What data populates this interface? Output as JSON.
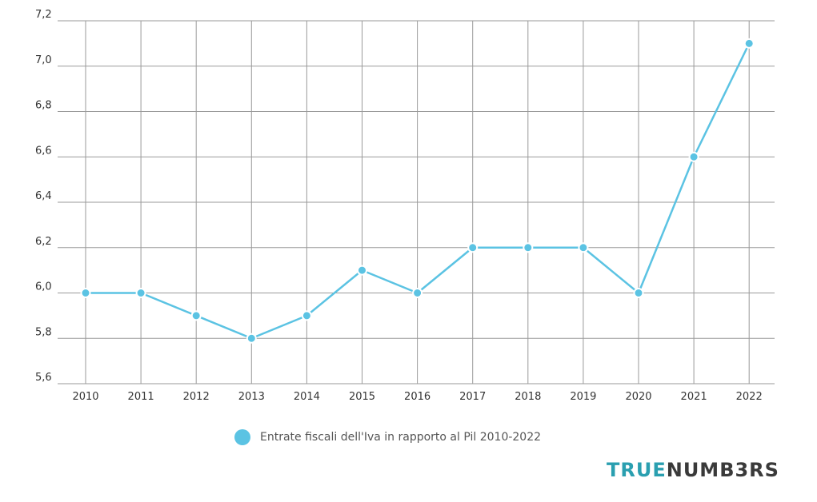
{
  "chart_data": {
    "type": "line",
    "title": "",
    "xlabel": "",
    "ylabel": "",
    "categories": [
      "2010",
      "2011",
      "2012",
      "2013",
      "2014",
      "2015",
      "2016",
      "2017",
      "2018",
      "2019",
      "2020",
      "2021",
      "2022"
    ],
    "series": [
      {
        "name": "Entrate fiscali dell'Iva in rapporto al Pil 2010-2022",
        "values": [
          6.0,
          6.0,
          5.9,
          5.8,
          5.9,
          6.1,
          6.0,
          6.2,
          6.2,
          6.2,
          6.0,
          6.6,
          7.1
        ]
      }
    ],
    "ylim": [
      5.6,
      7.2
    ],
    "y_ticks": [
      "5,6",
      "5,8",
      "6,0",
      "6,2",
      "6,4",
      "6,6",
      "6,8",
      "7,0",
      "7,2"
    ],
    "grid": true,
    "legend_position": "bottom",
    "line_color": "#5bc3e3"
  },
  "brand": {
    "part1": "TRUE",
    "part2": "NUMB3RS"
  }
}
